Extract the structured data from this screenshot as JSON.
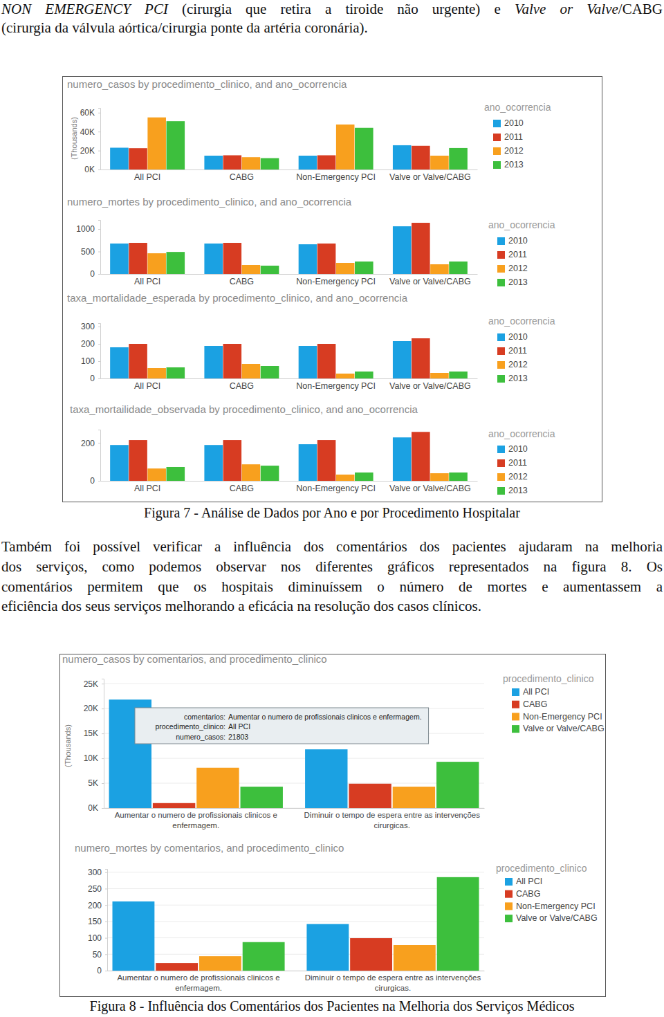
{
  "top_text": [
    [
      {
        "text": "NON EMERGENCY PCI",
        "style": "italic"
      },
      {
        "text": " (cirurgia que retira a tiroide não urgente) e "
      },
      {
        "text": "Valve or Valve",
        "style": "italic"
      },
      {
        "text": "/CABG"
      }
    ],
    [
      {
        "text": "(cirurgia da válvula aórtica/cirurgia ponte da artéria coronária)."
      }
    ]
  ],
  "chart_data": [
    {
      "type": "bar",
      "title": "numero_casos by procedimento_clinico, and ano_ocorrencia",
      "ylabel": "(Thousands)",
      "categories": [
        "All PCI",
        "CABG",
        "Non-Emergency PCI",
        "Valve or Valve/CABG"
      ],
      "legend_title": "ano_ocorrencia",
      "legend": "right",
      "grid": false,
      "series": [
        {
          "name": "2010",
          "color": "#1ba1e2",
          "values": [
            23,
            14.6,
            14.6,
            25.6
          ]
        },
        {
          "name": "2011",
          "color": "#d73c22",
          "values": [
            22.5,
            15,
            15,
            25
          ]
        },
        {
          "name": "2012",
          "color": "#f8a01e",
          "values": [
            55,
            13,
            47.5,
            14.6
          ]
        },
        {
          "name": "2013",
          "color": "#3dbf3d",
          "values": [
            51,
            12,
            44,
            22.7
          ]
        }
      ],
      "ylim": [
        0,
        65
      ],
      "yticks": [
        {
          "value": 0,
          "label": "0K"
        },
        {
          "value": 20,
          "label": "20K"
        },
        {
          "value": 40,
          "label": "40K"
        },
        {
          "value": 60,
          "label": "60K"
        }
      ]
    },
    {
      "type": "bar",
      "title": "numero_mortes by procedimento_clinico, and ano_ocorrencia",
      "categories": [
        "All PCI",
        "CABG",
        "Non-Emergency PCI",
        "Valve or Valve/CABG"
      ],
      "legend_title": "ano_ocorrencia",
      "legend": "right",
      "grid": false,
      "series": [
        {
          "name": "2010",
          "color": "#1ba1e2",
          "values": [
            677,
            677,
            660,
            1060
          ]
        },
        {
          "name": "2011",
          "color": "#d73c22",
          "values": [
            692,
            692,
            677,
            1138
          ]
        },
        {
          "name": "2012",
          "color": "#f8a01e",
          "values": [
            460,
            200,
            246,
            215
          ]
        },
        {
          "name": "2013",
          "color": "#3dbf3d",
          "values": [
            490,
            185,
            277,
            277
          ]
        }
      ],
      "ylim": [
        0,
        1200
      ],
      "yticks": [
        0,
        500,
        1000
      ]
    },
    {
      "type": "bar",
      "title": "taxa_mortalidade_esperada by procedimento_clinico, and ano_ocorrencia",
      "categories": [
        "All PCI",
        "CABG",
        "Non-Emergency PCI",
        "Valve or Valve/CABG"
      ],
      "legend_title": "ano_ocorrencia",
      "legend": "right",
      "grid": false,
      "series": [
        {
          "name": "2010",
          "color": "#1ba1e2",
          "values": [
            180,
            188,
            188,
            216
          ]
        },
        {
          "name": "2011",
          "color": "#d73c22",
          "values": [
            200,
            200,
            200,
            232
          ]
        },
        {
          "name": "2012",
          "color": "#f8a01e",
          "values": [
            60,
            84,
            28,
            32
          ]
        },
        {
          "name": "2013",
          "color": "#3dbf3d",
          "values": [
            64,
            72,
            40,
            40
          ]
        }
      ],
      "ylim": [
        0,
        320
      ],
      "yticks": [
        0,
        100,
        200,
        300
      ]
    },
    {
      "type": "bar",
      "title": "taxa_mortailidade_observada by procedimento_clinico, and ano_ocorrencia",
      "categories": [
        "All PCI",
        "CABG",
        "Non-Emergency PCI",
        "Valve or Valve/CABG"
      ],
      "legend_title": "ano_ocorrencia",
      "legend": "right",
      "grid": false,
      "series": [
        {
          "name": "2010",
          "color": "#1ba1e2",
          "values": [
            189,
            189,
            193,
            229
          ]
        },
        {
          "name": "2011",
          "color": "#d73c22",
          "values": [
            215,
            215,
            215,
            258
          ]
        },
        {
          "name": "2012",
          "color": "#f8a01e",
          "values": [
            65,
            87,
            33,
            40
          ]
        },
        {
          "name": "2013",
          "color": "#3dbf3d",
          "values": [
            73,
            80,
            44,
            44
          ]
        }
      ],
      "ylim": [
        0,
        270
      ],
      "yticks": [
        0,
        200
      ]
    },
    {
      "type": "bar",
      "title": "numero_casos by comentarios, and procedimento_clinico",
      "ylabel": "(Thousands)",
      "categories": [
        "Aumentar o numero de profissionais clinicos e enfermagem.",
        "Diminuir o tempo de espera entre as intervenções cirurgicas."
      ],
      "legend_title": "procedimento_clinico",
      "legend": "right",
      "grid": true,
      "series": [
        {
          "name": "All PCI",
          "color": "#1ba1e2",
          "values": [
            21.803,
            11.8
          ]
        },
        {
          "name": "CABG",
          "color": "#d73c22",
          "values": [
            1.0,
            4.9
          ]
        },
        {
          "name": "Non-Emergency PCI",
          "color": "#f8a01e",
          "values": [
            8.1,
            4.3
          ]
        },
        {
          "name": "Valve or Valve/CABG",
          "color": "#3dbf3d",
          "values": [
            4.3,
            9.3
          ]
        }
      ],
      "ylim": [
        0,
        26
      ],
      "yticks": [
        {
          "value": 0,
          "label": "0K"
        },
        {
          "value": 5,
          "label": "5K"
        },
        {
          "value": 10,
          "label": "10K"
        },
        {
          "value": 15,
          "label": "15K"
        },
        {
          "value": 20,
          "label": "20K"
        },
        {
          "value": 25,
          "label": "25K"
        }
      ],
      "annotations": [
        {
          "label": "comentarios:",
          "text": "Aumentar o numero de profissionais clinicos e enfermagem."
        },
        {
          "label": "procedimento_clinico:",
          "text": "All PCI"
        },
        {
          "label": "numero_casos:",
          "text": "21803"
        }
      ]
    },
    {
      "type": "bar",
      "title": "numero_mortes by comentarios, and procedimento_clinico",
      "categories": [
        "Aumentar o numero de profissionais clinicos e enfermagem.",
        "Diminuir o tempo de espera entre as intervenções cirurgicas."
      ],
      "legend_title": "procedimento_clinico",
      "legend": "right",
      "grid": true,
      "series": [
        {
          "name": "All PCI",
          "color": "#1ba1e2",
          "values": [
            211,
            142
          ]
        },
        {
          "name": "CABG",
          "color": "#d73c22",
          "values": [
            23,
            99
          ]
        },
        {
          "name": "Non-Emergency PCI",
          "color": "#f8a01e",
          "values": [
            44,
            78
          ]
        },
        {
          "name": "Valve or Valve/CABG",
          "color": "#3dbf3d",
          "values": [
            87,
            285
          ]
        }
      ],
      "ylim": [
        0,
        310
      ],
      "yticks": [
        0,
        50,
        100,
        150,
        200,
        250,
        300
      ]
    }
  ],
  "captions": [
    "Figura 7 - Análise de Dados por Ano e por Procedimento Hospitalar",
    "Figura 8 - Influência dos Comentários dos Pacientes na Melhoria dos Serviços Médicos"
  ],
  "paragraph": [
    "Também foi possível verificar a influência dos comentários dos pacientes ajudaram na melhoria",
    "dos serviços, como podemos observar nos diferentes gráficos representados na figura 8. Os",
    "comentários permitem que os hospitais diminuíssem o número de mortes e aumentassem a",
    "eficiência dos seus serviços melhorando a eficácia na resolução dos casos clínicos."
  ]
}
